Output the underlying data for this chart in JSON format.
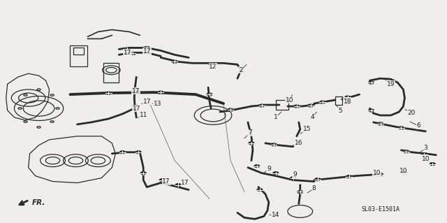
{
  "bg_color": "#f0eeea",
  "line_color": "#2a2a2a",
  "text_color": "#1a1a1a",
  "fig_width": 6.4,
  "fig_height": 3.19,
  "dpi": 100,
  "diagram_ref": "SL03-E1501A",
  "fr_label": "FR.",
  "lw_hose": 2.0,
  "lw_thin": 0.9,
  "lw_thick": 2.8,
  "clamp_r": 0.006
}
